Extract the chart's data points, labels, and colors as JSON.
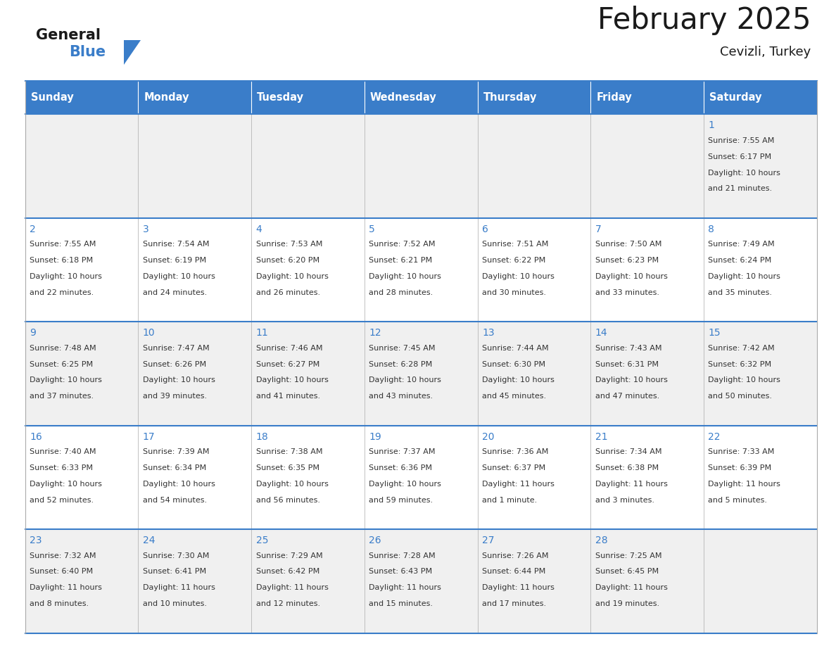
{
  "title": "February 2025",
  "subtitle": "Cevizli, Turkey",
  "days_of_week": [
    "Sunday",
    "Monday",
    "Tuesday",
    "Wednesday",
    "Thursday",
    "Friday",
    "Saturday"
  ],
  "header_bg": "#3A7DC9",
  "header_text": "#FFFFFF",
  "cell_bg_even": "#F0F0F0",
  "cell_bg_odd": "#FFFFFF",
  "cell_border": "#AAAAAA",
  "row_border_color": "#3A7DC9",
  "day_number_color": "#3A7DC9",
  "info_text_color": "#333333",
  "title_color": "#1a1a1a",
  "logo_general_color": "#1a1a1a",
  "logo_blue_color": "#3A7DC9",
  "calendar_data": [
    [
      null,
      null,
      null,
      null,
      null,
      null,
      {
        "day": 1,
        "sunrise": "7:55 AM",
        "sunset": "6:17 PM",
        "daylight": "10 hours",
        "daylight2": "and 21 minutes."
      }
    ],
    [
      {
        "day": 2,
        "sunrise": "7:55 AM",
        "sunset": "6:18 PM",
        "daylight": "10 hours",
        "daylight2": "and 22 minutes."
      },
      {
        "day": 3,
        "sunrise": "7:54 AM",
        "sunset": "6:19 PM",
        "daylight": "10 hours",
        "daylight2": "and 24 minutes."
      },
      {
        "day": 4,
        "sunrise": "7:53 AM",
        "sunset": "6:20 PM",
        "daylight": "10 hours",
        "daylight2": "and 26 minutes."
      },
      {
        "day": 5,
        "sunrise": "7:52 AM",
        "sunset": "6:21 PM",
        "daylight": "10 hours",
        "daylight2": "and 28 minutes."
      },
      {
        "day": 6,
        "sunrise": "7:51 AM",
        "sunset": "6:22 PM",
        "daylight": "10 hours",
        "daylight2": "and 30 minutes."
      },
      {
        "day": 7,
        "sunrise": "7:50 AM",
        "sunset": "6:23 PM",
        "daylight": "10 hours",
        "daylight2": "and 33 minutes."
      },
      {
        "day": 8,
        "sunrise": "7:49 AM",
        "sunset": "6:24 PM",
        "daylight": "10 hours",
        "daylight2": "and 35 minutes."
      }
    ],
    [
      {
        "day": 9,
        "sunrise": "7:48 AM",
        "sunset": "6:25 PM",
        "daylight": "10 hours",
        "daylight2": "and 37 minutes."
      },
      {
        "day": 10,
        "sunrise": "7:47 AM",
        "sunset": "6:26 PM",
        "daylight": "10 hours",
        "daylight2": "and 39 minutes."
      },
      {
        "day": 11,
        "sunrise": "7:46 AM",
        "sunset": "6:27 PM",
        "daylight": "10 hours",
        "daylight2": "and 41 minutes."
      },
      {
        "day": 12,
        "sunrise": "7:45 AM",
        "sunset": "6:28 PM",
        "daylight": "10 hours",
        "daylight2": "and 43 minutes."
      },
      {
        "day": 13,
        "sunrise": "7:44 AM",
        "sunset": "6:30 PM",
        "daylight": "10 hours",
        "daylight2": "and 45 minutes."
      },
      {
        "day": 14,
        "sunrise": "7:43 AM",
        "sunset": "6:31 PM",
        "daylight": "10 hours",
        "daylight2": "and 47 minutes."
      },
      {
        "day": 15,
        "sunrise": "7:42 AM",
        "sunset": "6:32 PM",
        "daylight": "10 hours",
        "daylight2": "and 50 minutes."
      }
    ],
    [
      {
        "day": 16,
        "sunrise": "7:40 AM",
        "sunset": "6:33 PM",
        "daylight": "10 hours",
        "daylight2": "and 52 minutes."
      },
      {
        "day": 17,
        "sunrise": "7:39 AM",
        "sunset": "6:34 PM",
        "daylight": "10 hours",
        "daylight2": "and 54 minutes."
      },
      {
        "day": 18,
        "sunrise": "7:38 AM",
        "sunset": "6:35 PM",
        "daylight": "10 hours",
        "daylight2": "and 56 minutes."
      },
      {
        "day": 19,
        "sunrise": "7:37 AM",
        "sunset": "6:36 PM",
        "daylight": "10 hours",
        "daylight2": "and 59 minutes."
      },
      {
        "day": 20,
        "sunrise": "7:36 AM",
        "sunset": "6:37 PM",
        "daylight": "11 hours",
        "daylight2": "and 1 minute."
      },
      {
        "day": 21,
        "sunrise": "7:34 AM",
        "sunset": "6:38 PM",
        "daylight": "11 hours",
        "daylight2": "and 3 minutes."
      },
      {
        "day": 22,
        "sunrise": "7:33 AM",
        "sunset": "6:39 PM",
        "daylight": "11 hours",
        "daylight2": "and 5 minutes."
      }
    ],
    [
      {
        "day": 23,
        "sunrise": "7:32 AM",
        "sunset": "6:40 PM",
        "daylight": "11 hours",
        "daylight2": "and 8 minutes."
      },
      {
        "day": 24,
        "sunrise": "7:30 AM",
        "sunset": "6:41 PM",
        "daylight": "11 hours",
        "daylight2": "and 10 minutes."
      },
      {
        "day": 25,
        "sunrise": "7:29 AM",
        "sunset": "6:42 PM",
        "daylight": "11 hours",
        "daylight2": "and 12 minutes."
      },
      {
        "day": 26,
        "sunrise": "7:28 AM",
        "sunset": "6:43 PM",
        "daylight": "11 hours",
        "daylight2": "and 15 minutes."
      },
      {
        "day": 27,
        "sunrise": "7:26 AM",
        "sunset": "6:44 PM",
        "daylight": "11 hours",
        "daylight2": "and 17 minutes."
      },
      {
        "day": 28,
        "sunrise": "7:25 AM",
        "sunset": "6:45 PM",
        "daylight": "11 hours",
        "daylight2": "and 19 minutes."
      },
      null
    ]
  ],
  "fig_width": 11.88,
  "fig_height": 9.18
}
